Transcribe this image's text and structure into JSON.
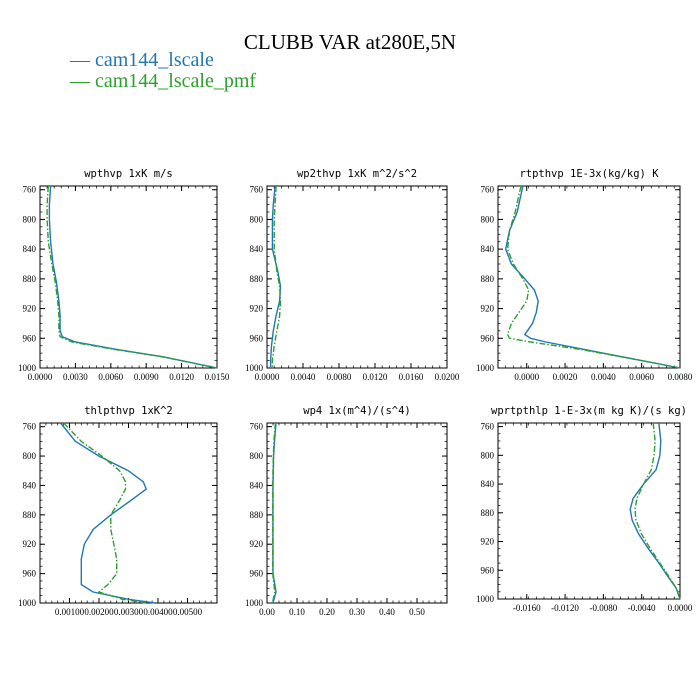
{
  "figure": {
    "title": "CLUBB VAR at280E,5N",
    "legend": [
      {
        "label": "cam144_lscale",
        "color": "#1f77b4",
        "dash": "solid"
      },
      {
        "label": "cam144_lscale_pmf",
        "color": "#2ca02c",
        "dash": "dashdot"
      }
    ]
  },
  "chart_data": [
    {
      "type": "line",
      "title": "wpthvp   1xK m/s",
      "xlim": [
        0,
        0.015
      ],
      "xticks": [
        "0.0000",
        "0.0030",
        "0.0060",
        "0.0090",
        "0.0120",
        "0.0150"
      ],
      "ylim": [
        1000,
        755
      ],
      "yticks": [
        "760",
        "800",
        "840",
        "880",
        "920",
        "960",
        "1000"
      ],
      "series": [
        {
          "name": "cam144_lscale",
          "y": [
            755,
            780,
            800,
            830,
            860,
            885,
            910,
            930,
            950,
            958,
            965,
            975,
            985,
            1000
          ],
          "x": [
            0.0009,
            0.0008,
            0.0008,
            0.0009,
            0.0011,
            0.0014,
            0.0016,
            0.0017,
            0.0017,
            0.0019,
            0.003,
            0.0065,
            0.0105,
            0.015
          ]
        },
        {
          "name": "cam144_lscale_pmf",
          "y": [
            755,
            780,
            800,
            830,
            860,
            885,
            910,
            930,
            950,
            958,
            965,
            975,
            985,
            1000
          ],
          "x": [
            0.0007,
            0.0006,
            0.0006,
            0.0007,
            0.001,
            0.0013,
            0.0015,
            0.0016,
            0.0016,
            0.0017,
            0.0027,
            0.0063,
            0.0104,
            0.015
          ]
        }
      ]
    },
    {
      "type": "line",
      "title": "wp2thvp   1xK m^2/s^2",
      "xlim": [
        0,
        0.02
      ],
      "xticks": [
        "0.0000",
        "0.0040",
        "0.0080",
        "0.0120",
        "0.0160",
        "0.0200"
      ],
      "ylim": [
        1000,
        755
      ],
      "yticks": [
        "760",
        "800",
        "840",
        "880",
        "920",
        "960",
        "1000"
      ],
      "series": [
        {
          "name": "cam144_lscale",
          "y": [
            755,
            780,
            800,
            840,
            870,
            890,
            910,
            930,
            950,
            970,
            990,
            1000
          ],
          "x": [
            0.0009,
            0.0007,
            0.0006,
            0.0006,
            0.0012,
            0.0015,
            0.0014,
            0.001,
            0.0007,
            0.0005,
            0.0004,
            0.0004
          ]
        },
        {
          "name": "cam144_lscale_pmf",
          "y": [
            755,
            780,
            800,
            840,
            870,
            890,
            910,
            930,
            950,
            970,
            990,
            1000
          ],
          "x": [
            0.001,
            0.0009,
            0.0008,
            0.0008,
            0.0011,
            0.0014,
            0.0015,
            0.0014,
            0.0011,
            0.0008,
            0.0006,
            0.0006
          ]
        }
      ]
    },
    {
      "type": "line",
      "title": "rtpthvp   1E-3x(kg/kg) K",
      "xlim": [
        -0.0015,
        0.008
      ],
      "xticks": [
        "0.0000",
        "0.0020",
        "0.0040",
        "0.0060",
        "0.0080"
      ],
      "ylim": [
        1000,
        755
      ],
      "yticks": [
        "760",
        "800",
        "840",
        "880",
        "920",
        "960",
        "1000"
      ],
      "series": [
        {
          "name": "cam144_lscale",
          "y": [
            755,
            790,
            815,
            840,
            860,
            880,
            895,
            910,
            925,
            940,
            955,
            960,
            965,
            975,
            990,
            1000
          ],
          "x": [
            -0.0002,
            -0.0005,
            -0.0009,
            -0.0011,
            -0.0008,
            -0.0001,
            0.0004,
            0.0006,
            0.0005,
            0.0003,
            -0.0001,
            0.0002,
            0.001,
            0.003,
            0.006,
            0.008
          ]
        },
        {
          "name": "cam144_lscale_pmf",
          "y": [
            755,
            790,
            815,
            840,
            860,
            880,
            895,
            910,
            925,
            940,
            955,
            960,
            965,
            975,
            990,
            1000
          ],
          "x": [
            -0.0003,
            -0.0006,
            -0.0009,
            -0.001,
            -0.0007,
            -0.0002,
            0.0001,
            0.0,
            -0.0004,
            -0.0008,
            -0.001,
            -0.0009,
            0.0002,
            0.0028,
            0.006,
            0.008
          ]
        }
      ]
    },
    {
      "type": "line",
      "title": "thlpthvp   1xK^2",
      "xlim": [
        0,
        0.006
      ],
      "xticks": [
        "0.00100",
        "0.00200",
        "0.00300",
        "0.00400",
        "0.00500"
      ],
      "ylim": [
        1000,
        755
      ],
      "yticks": [
        "760",
        "800",
        "840",
        "880",
        "920",
        "960",
        "1000"
      ],
      "series": [
        {
          "name": "cam144_lscale",
          "y": [
            755,
            780,
            800,
            820,
            835,
            845,
            860,
            880,
            900,
            920,
            940,
            960,
            975,
            985,
            995,
            1000
          ],
          "x": [
            0.0007,
            0.0012,
            0.002,
            0.003,
            0.0035,
            0.0036,
            0.0031,
            0.0024,
            0.0018,
            0.0015,
            0.0014,
            0.0014,
            0.0014,
            0.0018,
            0.003,
            0.0039
          ]
        },
        {
          "name": "cam144_lscale_pmf",
          "y": [
            755,
            780,
            800,
            820,
            835,
            845,
            860,
            880,
            900,
            920,
            940,
            960,
            975,
            985,
            995,
            1000
          ],
          "x": [
            0.0008,
            0.0014,
            0.0021,
            0.0027,
            0.0029,
            0.0029,
            0.0027,
            0.0024,
            0.0024,
            0.0025,
            0.0026,
            0.0026,
            0.0023,
            0.002,
            0.0028,
            0.0036
          ]
        }
      ]
    },
    {
      "type": "line",
      "title": "wp4   1x(m^4)/(s^4)",
      "xlim": [
        0,
        0.6
      ],
      "xticks": [
        "0.00",
        "0.10",
        "0.20",
        "0.30",
        "0.40",
        "0.50"
      ],
      "ylim": [
        1000,
        755
      ],
      "yticks": [
        "760",
        "800",
        "840",
        "880",
        "920",
        "960",
        "1000"
      ],
      "series": [
        {
          "name": "cam144_lscale",
          "y": [
            755,
            780,
            800,
            840,
            880,
            920,
            960,
            985,
            1000
          ],
          "x": [
            0.03,
            0.025,
            0.022,
            0.02,
            0.02,
            0.02,
            0.02,
            0.03,
            0.02
          ]
        },
        {
          "name": "cam144_lscale_pmf",
          "y": [
            755,
            780,
            800,
            840,
            880,
            920,
            960,
            985,
            1000
          ],
          "x": [
            0.028,
            0.023,
            0.021,
            0.019,
            0.019,
            0.019,
            0.019,
            0.026,
            0.018
          ]
        }
      ]
    },
    {
      "type": "line",
      "title": "wprtpthlp   1-E-3x(m kg K)/(s kg)",
      "xlim": [
        -0.019,
        0
      ],
      "xticks": [
        "-0.0160",
        "-0.0120",
        "-0.0080",
        "-0.0040",
        "0.0000"
      ],
      "ylim": [
        1000,
        755
      ],
      "yticks": [
        "760",
        "800",
        "840",
        "880",
        "920",
        "960",
        "1000"
      ],
      "series": [
        {
          "name": "cam144_lscale",
          "y": [
            755,
            780,
            800,
            820,
            840,
            860,
            875,
            890,
            910,
            930,
            950,
            970,
            985,
            1000
          ],
          "x": [
            -0.0022,
            -0.002,
            -0.0021,
            -0.0025,
            -0.0038,
            -0.0049,
            -0.0052,
            -0.005,
            -0.0043,
            -0.0033,
            -0.0022,
            -0.0012,
            -0.0004,
            0.0
          ]
        },
        {
          "name": "cam144_lscale_pmf",
          "y": [
            755,
            780,
            800,
            820,
            840,
            860,
            875,
            890,
            910,
            930,
            950,
            970,
            985,
            1000
          ],
          "x": [
            -0.0028,
            -0.0026,
            -0.0027,
            -0.003,
            -0.0038,
            -0.0045,
            -0.0047,
            -0.0046,
            -0.004,
            -0.0031,
            -0.0021,
            -0.0011,
            -0.0004,
            0.0
          ]
        }
      ]
    }
  ]
}
